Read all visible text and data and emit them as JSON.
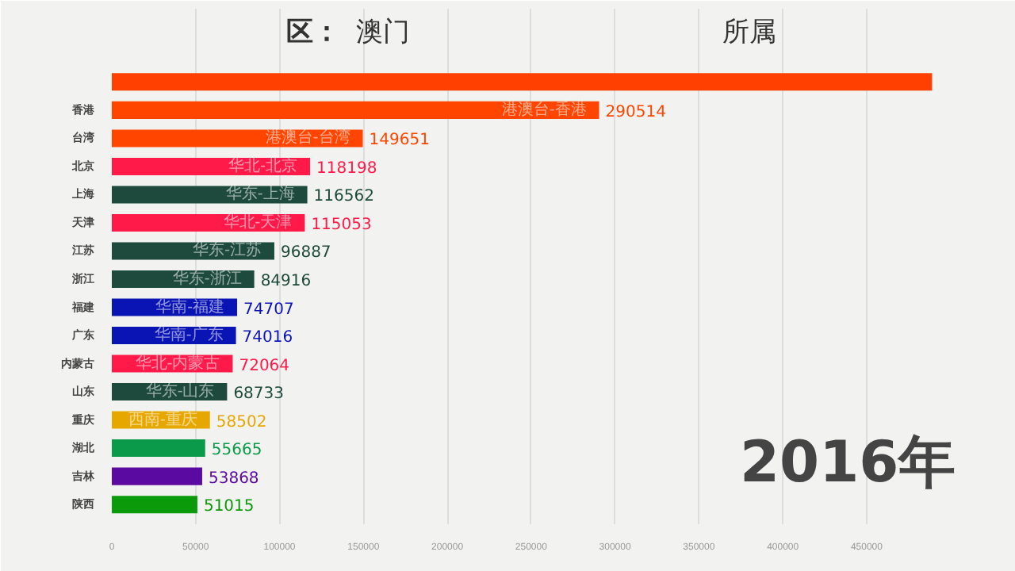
{
  "chart_data": {
    "type": "bar",
    "orientation": "horizontal",
    "categories": [
      null,
      "香港",
      "台湾",
      "北京",
      "上海",
      "天津",
      "江苏",
      "浙江",
      "福建",
      "广东",
      "内蒙古",
      "山东",
      "重庆",
      "湖北",
      "吉林",
      "陕西"
    ],
    "values": [
      489000,
      290514,
      149651,
      118198,
      116562,
      115053,
      96887,
      84916,
      74707,
      74016,
      72064,
      68733,
      58502,
      55665,
      53868,
      51015
    ],
    "colors": [
      "#ff4000",
      "#ff4500",
      "#ff4500",
      "#ff1a4a",
      "#1d4a3c",
      "#ff1a4a",
      "#1d4a3c",
      "#1d4a3c",
      "#0a14b4",
      "#0a14b4",
      "#ff1a4a",
      "#1d4a3c",
      "#e6a800",
      "#0a9a4a",
      "#5a0aa0",
      "#0a9a0a"
    ],
    "value_labels": [
      null,
      "290514",
      "149651",
      "118198",
      "116562",
      "115053",
      "96887",
      "84916",
      "74707",
      "74016",
      "72064",
      "68733",
      "58502",
      "55665",
      "53868",
      "51015"
    ],
    "xlim": [
      0,
      520000
    ],
    "xticks": [
      0,
      50000,
      100000,
      150000,
      200000,
      250000,
      300000,
      350000,
      400000,
      450000
    ],
    "grid": "x",
    "annotations": [
      "区：",
      "澳门",
      "所属",
      "2016年",
      {
        "text": "港澳台-香港",
        "x": 290514,
        "y": "香港"
      },
      {
        "text": "港澳台-台湾",
        "x": 149651,
        "y": "台湾"
      },
      {
        "text": "华北-北京",
        "x": 118198,
        "y": "北京"
      },
      {
        "text": "华东-上海",
        "x": 116562,
        "y": "上海"
      },
      {
        "text": "华北-天津",
        "x": 115053,
        "y": "天津"
      },
      {
        "text": "华东-江苏",
        "x": 96887,
        "y": "江苏"
      },
      {
        "text": "华东-浙江",
        "x": 84916,
        "y": "浙江"
      },
      {
        "text": "华南-福建",
        "x": 74707,
        "y": "福建"
      },
      {
        "text": "华南-广东",
        "x": 74016,
        "y": "广东"
      },
      {
        "text": "华北-内蒙古",
        "x": 72064,
        "y": "内蒙古"
      },
      {
        "text": "华东-山东",
        "x": 68733,
        "y": "山东"
      },
      {
        "text": "西南-重庆",
        "x": 58502,
        "y": "重庆"
      }
    ]
  }
}
